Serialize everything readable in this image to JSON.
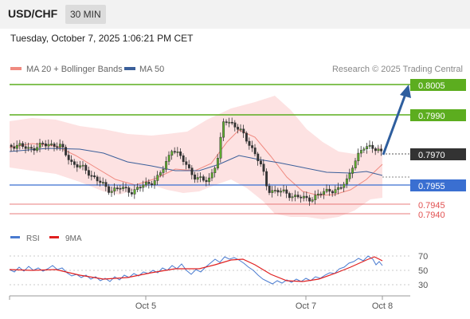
{
  "header": {
    "symbol": "USD/CHF",
    "timeframe": "30 MIN"
  },
  "datetime": "Tuesday, October 7, 2025 1:06:21 PM CET",
  "legend": {
    "ma20": "MA 20 + Bollinger Bands",
    "ma50": "MA 50",
    "credit": "Research © 2025 Trading Central"
  },
  "colors": {
    "resistance": "#5cad1f",
    "support": "#3a6fd1",
    "red_level": "#e15050",
    "current": "#333333",
    "bollinger_fill": "#fde2e2",
    "ma50": "#3b5f9a",
    "arrow": "#2e5e9e"
  },
  "levels": {
    "resistance": [
      "0.8005",
      "0.7990"
    ],
    "current": "0.7970",
    "support": "0.7955",
    "red": [
      "0.7945",
      "0.7940"
    ]
  },
  "rsi": {
    "legend_rsi": "RSI",
    "legend_ma": "9MA",
    "ticks": [
      "70",
      "50",
      "30"
    ]
  },
  "xaxis": {
    "labels": [
      "Oct 5",
      "Oct 7",
      "Oct 8"
    ]
  },
  "chart_data": {
    "type": "line",
    "title": "",
    "xlabel": "",
    "ylabel": "",
    "x_tick_labels": [
      "Oct 5",
      "Oct 7",
      "Oct 8"
    ],
    "price_levels": {
      "resistance_1": 0.8005,
      "resistance_2": 0.799,
      "last": 0.797,
      "support": 0.7955,
      "level_1": 0.7945,
      "level_2": 0.794
    },
    "rsi_ticks": [
      70,
      50,
      30
    ],
    "rsi_ylim": [
      20,
      80
    ]
  }
}
